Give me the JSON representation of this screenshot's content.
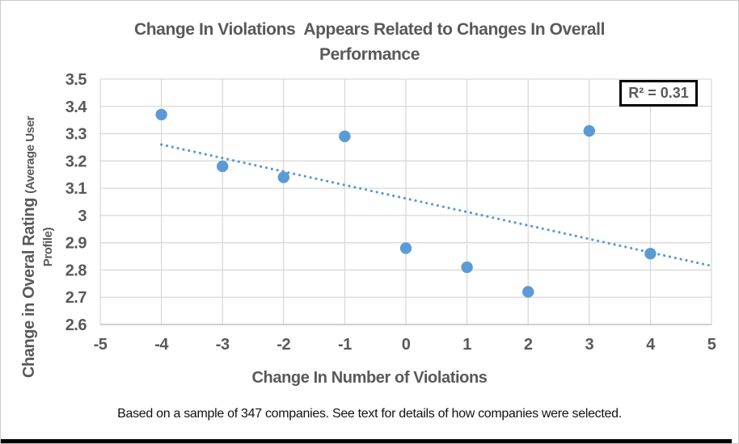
{
  "title": {
    "line1": "Change In Violations  Appears Related to Changes In Overall",
    "line2": "Performance"
  },
  "annotation": {
    "r_squared_label": "R² = 0.31"
  },
  "footnote": "Based on a sample of 347 companies. See text for details of how companies were selected.",
  "colors": {
    "point": "#5b9bd5",
    "trendline": "#5b9bd5",
    "gridline": "#d9d9d9",
    "axis_line": "#bfbfbf",
    "label_text": "#595959",
    "footnote_text": "#111111",
    "annotation_border": "#000000"
  },
  "chart_data": {
    "type": "scatter",
    "title": "Change In Violations Appears Related to Changes In Overall Performance",
    "xlabel": "Change In Number of Violations",
    "ylabel": "Change in Overal Rating (Average User Profile)",
    "ylabel_parts": {
      "large": "Change in Overal Rating ",
      "small_line1": "(Average User",
      "small_line2": "Profile)"
    },
    "xlim": [
      -5,
      5
    ],
    "ylim": [
      2.6,
      3.5
    ],
    "x_ticks": [
      "-5",
      "-4",
      "-3",
      "-2",
      "-1",
      "0",
      "1",
      "2",
      "3",
      "4",
      "5"
    ],
    "y_ticks": [
      "3.5",
      "3.4",
      "3.3",
      "3.2",
      "3.1",
      "3",
      "2.9",
      "2.8",
      "2.7",
      "2.6"
    ],
    "grid": true,
    "legend": "none",
    "points": [
      {
        "x": -4,
        "y": 3.37
      },
      {
        "x": -3,
        "y": 3.18
      },
      {
        "x": -2,
        "y": 3.14
      },
      {
        "x": -1,
        "y": 3.29
      },
      {
        "x": 0,
        "y": 2.88
      },
      {
        "x": 1,
        "y": 2.81
      },
      {
        "x": 2,
        "y": 2.72
      },
      {
        "x": 3,
        "y": 3.31
      },
      {
        "x": 4,
        "y": 2.86
      }
    ],
    "trendline": {
      "style": "dotted",
      "slope": -0.0495,
      "intercept": 3.062,
      "x_start": -4,
      "y_start": 3.26,
      "x_end": 5,
      "y_end": 2.815,
      "r_squared": 0.31
    }
  }
}
